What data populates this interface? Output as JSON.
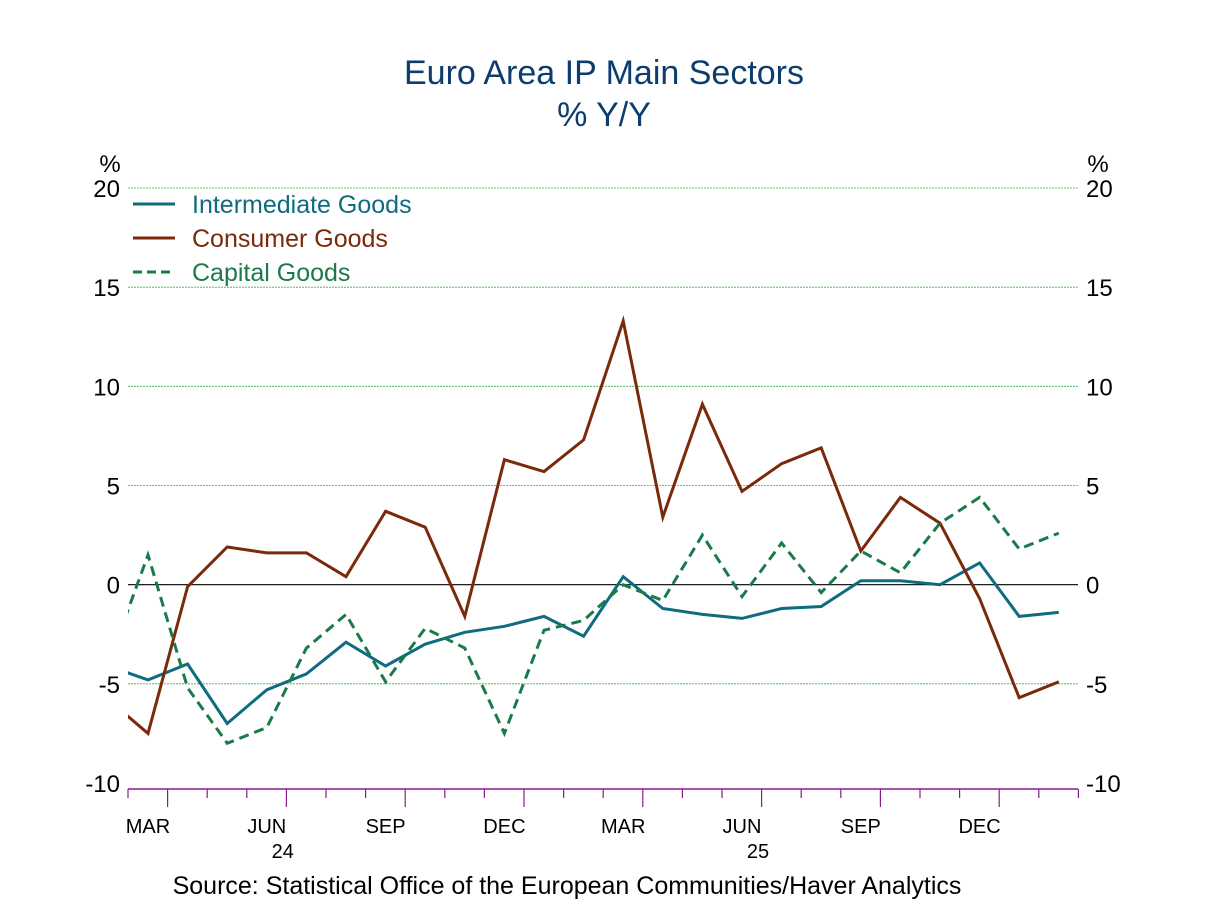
{
  "chart_data": {
    "type": "line",
    "title": "Euro Area IP Main Sectors",
    "subtitle": "% Y/Y",
    "ylabel_left": "%",
    "ylabel_right": "%",
    "ylim": [
      -10,
      20
    ],
    "yticks": [
      20,
      15,
      10,
      5,
      0,
      -5,
      -10
    ],
    "grid": true,
    "legend_position": "top-left",
    "x": [
      "Feb 2024",
      "Mar 2024",
      "Apr 2024",
      "May 2024",
      "Jun 2024",
      "Jul 2024",
      "Aug 2024",
      "Sep 2024",
      "Oct 2024",
      "Nov 2024",
      "Dec 2024",
      "Jan 2025",
      "Feb 2025",
      "Mar 2025",
      "Apr 2025",
      "May 2025",
      "Jun 2025",
      "Jul 2025",
      "Aug 2025",
      "Sep 2025",
      "Oct 2025",
      "Nov 2025",
      "Dec 2025",
      "Jan 2026",
      "Feb 2026"
    ],
    "xtick_labels": [
      {
        "label": "MAR",
        "month_index": 1
      },
      {
        "label": "JUN",
        "month_index": 4,
        "year": "24"
      },
      {
        "label": "SEP",
        "month_index": 7
      },
      {
        "label": "DEC",
        "month_index": 10
      },
      {
        "label": "MAR",
        "month_index": 13
      },
      {
        "label": "JUN",
        "month_index": 16,
        "year": "25"
      },
      {
        "label": "SEP",
        "month_index": 19
      },
      {
        "label": "DEC",
        "month_index": 22
      }
    ],
    "series": [
      {
        "name": "Intermediate Goods",
        "color": "#0f6b80",
        "dash": false,
        "values": [
          -4.1,
          -4.8,
          -4.0,
          -7.0,
          -5.3,
          -4.5,
          -2.9,
          -4.1,
          -3.0,
          -2.4,
          -2.1,
          -1.6,
          -2.6,
          0.4,
          -1.2,
          -1.5,
          -1.7,
          -1.2,
          -1.1,
          0.2,
          0.2,
          0.0,
          1.1,
          -1.6,
          -1.4
        ]
      },
      {
        "name": "Consumer Goods",
        "color": "#7a2a0a",
        "dash": false,
        "values": [
          -5.8,
          -7.5,
          -0.1,
          1.9,
          1.6,
          1.6,
          0.4,
          3.7,
          2.9,
          -1.6,
          6.3,
          5.7,
          7.3,
          13.3,
          3.4,
          9.1,
          4.7,
          6.1,
          6.9,
          1.7,
          4.4,
          3.1,
          -0.7,
          -5.7,
          -4.9
        ]
      },
      {
        "name": "Capital Goods",
        "color": "#1a7a4a",
        "dash": true,
        "values": [
          -4.0,
          1.5,
          -5.2,
          -8.0,
          -7.2,
          -3.2,
          -1.5,
          -4.9,
          -2.2,
          -3.2,
          -7.5,
          -2.3,
          -1.8,
          0.0,
          -0.8,
          2.5,
          -0.6,
          2.1,
          -0.4,
          1.7,
          0.6,
          3.1,
          4.4,
          1.8,
          2.6
        ]
      }
    ],
    "source": "Source:  Statistical Office of the European Communities/Haver Analytics"
  }
}
